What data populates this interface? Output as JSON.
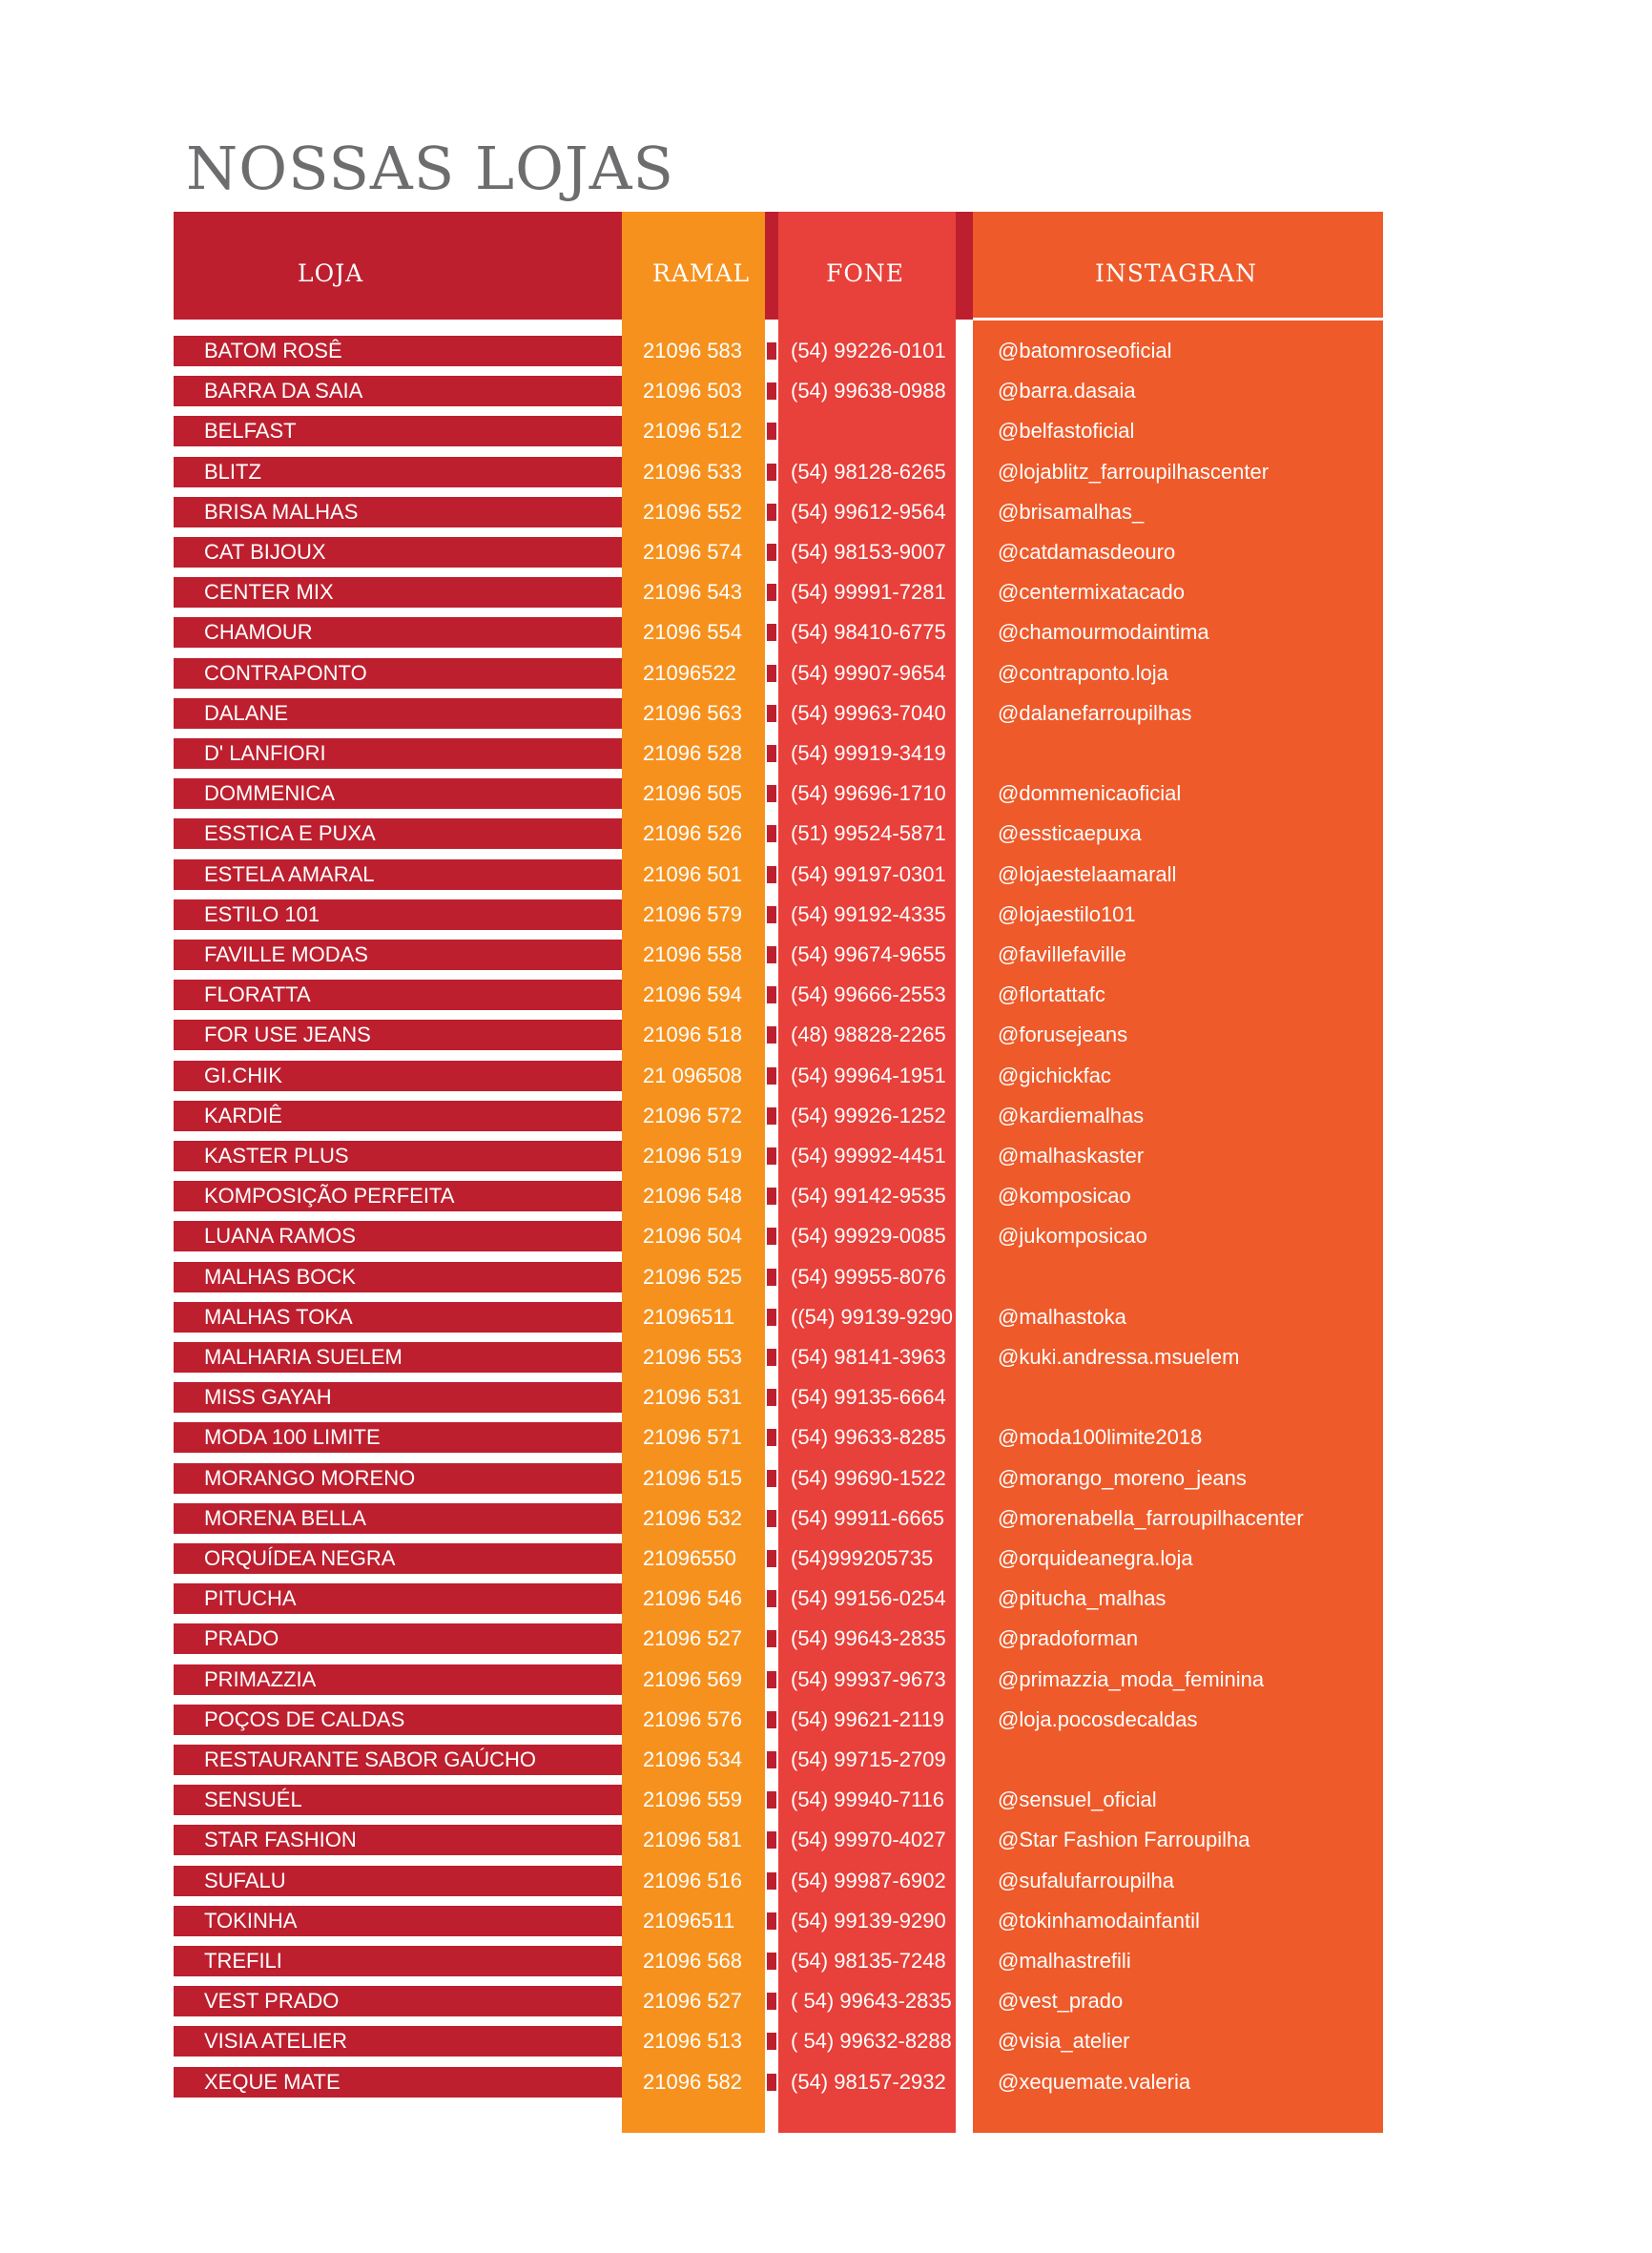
{
  "title": "NOSSAS LOJAS",
  "headers": {
    "loja": "LOJA",
    "ramal": "RAMAL",
    "fone": "FONE",
    "instagram": "INSTAGRAN"
  },
  "colors": {
    "loja_red": "#bd1f2f",
    "ramal_orange": "#f6911e",
    "fone_red": "#e8403a",
    "instagram_orange": "#ee5a2a",
    "title_gray": "#6d6d6f"
  },
  "stores": [
    {
      "loja": "BATOM ROSÊ",
      "ramal": "21096 583",
      "fone": "(54) 99226-0101",
      "instagram": "@batomroseoficial"
    },
    {
      "loja": "BARRA DA SAIA",
      "ramal": "21096 503",
      "fone": "(54) 99638-0988",
      "instagram": "@barra.dasaia"
    },
    {
      "loja": "BELFAST",
      "ramal": "21096 512",
      "fone": "",
      "instagram": "@belfastoficial"
    },
    {
      "loja": "BLITZ",
      "ramal": "21096 533",
      "fone": "(54) 98128-6265",
      "instagram": "@lojablitz_farroupilhascenter"
    },
    {
      "loja": "BRISA MALHAS",
      "ramal": "21096 552",
      "fone": "(54) 99612-9564",
      "instagram": "@brisamalhas_"
    },
    {
      "loja": "CAT BIJOUX",
      "ramal": "21096 574",
      "fone": "(54) 98153-9007",
      "instagram": "@catdamasdeouro"
    },
    {
      "loja": "CENTER MIX",
      "ramal": "21096 543",
      "fone": "(54) 99991-7281",
      "instagram": "@centermixatacado"
    },
    {
      "loja": "CHAMOUR",
      "ramal": "21096 554",
      "fone": "(54) 98410-6775",
      "instagram": "@chamourmodaintima"
    },
    {
      "loja": "CONTRAPONTO",
      "ramal": "21096522",
      "fone": "(54) 99907-9654",
      "instagram": "@contraponto.loja"
    },
    {
      "loja": "DALANE",
      "ramal": "21096 563",
      "fone": "(54) 99963-7040",
      "instagram": "@dalanefarroupilhas"
    },
    {
      "loja": "D' LANFIORI",
      "ramal": "21096 528",
      "fone": "(54) 99919-3419",
      "instagram": ""
    },
    {
      "loja": "DOMMENICA",
      "ramal": "21096 505",
      "fone": "(54) 99696-1710",
      "instagram": "@dommenicaoficial"
    },
    {
      "loja": "ESSTICA E PUXA",
      "ramal": "21096 526",
      "fone": "(51) 99524-5871",
      "instagram": "@essticaepuxa"
    },
    {
      "loja": "ESTELA AMARAL",
      "ramal": "21096 501",
      "fone": "(54) 99197-0301",
      "instagram": "@lojaestelaamarall"
    },
    {
      "loja": "ESTILO 101",
      "ramal": "21096 579",
      "fone": "(54) 99192-4335",
      "instagram": "@lojaestilo101"
    },
    {
      "loja": "FAVILLE MODAS",
      "ramal": "21096 558",
      "fone": "(54) 99674-9655",
      "instagram": "@favillefaville"
    },
    {
      "loja": "FLORATTA",
      "ramal": "21096 594",
      "fone": "(54) 99666-2553",
      "instagram": "@flortattafc"
    },
    {
      "loja": "FOR USE JEANS",
      "ramal": "21096 518",
      "fone": "(48) 98828-2265",
      "instagram": "@forusejeans"
    },
    {
      "loja": "GI.CHIK",
      "ramal": "21 096508",
      "fone": "(54) 99964-1951",
      "instagram": "@gichickfac"
    },
    {
      "loja": " KARDIÊ",
      "ramal": "21096 572",
      "fone": "(54) 99926-1252",
      "instagram": "@kardiemalhas"
    },
    {
      "loja": "KASTER PLUS",
      "ramal": "21096 519",
      "fone": "(54) 99992-4451",
      "instagram": "@malhaskaster"
    },
    {
      "loja": "KOMPOSIÇÃO PERFEITA",
      "ramal": "21096 548",
      "fone": "(54) 99142-9535",
      "instagram": "@komposicao"
    },
    {
      "loja": "LUANA RAMOS",
      "ramal": "21096 504",
      "fone": "(54) 99929-0085",
      "instagram": "@jukomposicao"
    },
    {
      "loja": "MALHAS BOCK",
      "ramal": "21096 525",
      "fone": "(54) 99955-8076",
      "instagram": ""
    },
    {
      "loja": "MALHAS TOKA",
      "ramal": "21096511",
      "fone": "((54) 99139-9290",
      "instagram": "@malhastoka"
    },
    {
      "loja": "MALHARIA SUELEM",
      "ramal": "21096 553",
      "fone": "(54) 98141-3963",
      "instagram": "@kuki.andressa.msuelem"
    },
    {
      "loja": "MISS GAYAH",
      "ramal": "21096 531",
      "fone": "(54) 99135-6664",
      "instagram": ""
    },
    {
      "loja": "MODA 100 LIMITE",
      "ramal": "21096 571",
      "fone": "(54) 99633-8285",
      "instagram": "@moda100limite2018"
    },
    {
      "loja": "MORANGO MORENO",
      "ramal": "21096 515",
      "fone": "(54) 99690-1522",
      "instagram": "@morango_moreno_jeans"
    },
    {
      "loja": "MORENA BELLA",
      "ramal": "21096 532",
      "fone": "(54) 99911-6665",
      "instagram": "@morenabella_farroupilhacenter"
    },
    {
      "loja": "ORQUÍDEA NEGRA",
      "ramal": "21096550",
      "fone": "(54)999205735",
      "instagram": "@orquideanegra.loja"
    },
    {
      "loja": "PITUCHA",
      "ramal": "21096 546",
      "fone": "(54) 99156-0254",
      "instagram": "@pitucha_malhas"
    },
    {
      "loja": "PRADO",
      "ramal": "21096 527",
      "fone": "(54) 99643-2835",
      "instagram": "@pradoforman"
    },
    {
      "loja": "PRIMAZZIA",
      "ramal": "21096 569",
      "fone": "(54) 99937-9673",
      "instagram": "@primazzia_moda_feminina"
    },
    {
      "loja": "POÇOS DE CALDAS",
      "ramal": "21096 576",
      "fone": "(54) 99621-2119",
      "instagram": "@loja.pocosdecaldas"
    },
    {
      "loja": "RESTAURANTE SABOR GAÚCHO",
      "ramal": "21096 534",
      "fone": "(54) 99715-2709",
      "instagram": ""
    },
    {
      "loja": "SENSUÉL",
      "ramal": "21096 559",
      "fone": "(54) 99940-7116",
      "instagram": "@sensuel_oficial"
    },
    {
      "loja": "STAR FASHION",
      "ramal": "21096 581",
      "fone": "(54) 99970-4027",
      "instagram": "@Star Fashion Farroupilha"
    },
    {
      "loja": "SUFALU",
      "ramal": "21096 516",
      "fone": "(54) 99987-6902",
      "instagram": "@sufalufarroupilha"
    },
    {
      "loja": "TOKINHA",
      "ramal": "21096511",
      "fone": "(54) 99139-9290",
      "instagram": "@tokinhamodainfantil"
    },
    {
      "loja": "TREFILI",
      "ramal": "21096 568",
      "fone": "(54) 98135-7248",
      "instagram": "@malhastrefili"
    },
    {
      "loja": "VEST PRADO",
      "ramal": "21096 527",
      "fone": "( 54) 99643-2835",
      "instagram": "@vest_prado"
    },
    {
      "loja": "VISIA ATELIER",
      "ramal": "21096 513",
      "fone": "( 54) 99632-8288",
      "instagram": "@visia_atelier"
    },
    {
      "loja": "XEQUE MATE",
      "ramal": "21096 582",
      "fone": "(54) 98157-2932",
      "instagram": "@xequemate.valeria"
    }
  ]
}
